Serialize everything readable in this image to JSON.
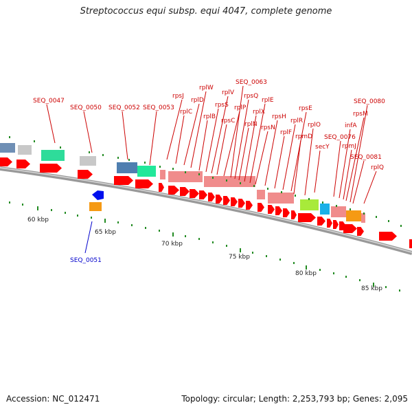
{
  "title": "Streptococcus equi subsp. equi 4047, complete genome",
  "footer": {
    "accession": "Accession: NC_012471",
    "summary": "Topology: circular; Length: 2,253,793 bp; Genes: 2,095"
  },
  "colors": {
    "gene_label": "#cc0000",
    "reverse_label": "#0000cc",
    "cds_arrow": "#ff0000",
    "tick": "#228b22",
    "backbone": "#9a9a9a",
    "ribosomal_block": "#f08c8c"
  },
  "scale_labels": [
    "60 kbp",
    "65 kbp",
    "70 kbp",
    "75 kbp",
    "80 kbp",
    "85 kbp"
  ],
  "gene_labels": [
    "SEQ_0047",
    "SEQ_0050",
    "SEQ_0052",
    "SEQ_0053",
    "rpsJ",
    "rplC",
    "rplD",
    "rplW",
    "rplB",
    "rpsS",
    "rplV",
    "rpsC",
    "rplP",
    "SEQ_0063",
    "rpsQ",
    "rplN",
    "rplX",
    "rplE",
    "rpsN",
    "rpsH",
    "rplF",
    "rplR",
    "rpsE",
    "rpmD",
    "rplO",
    "secY",
    "SEQ_0076",
    "infA",
    "rpmJ",
    "rpsM",
    "SEQ_0080",
    "SEQ_0081",
    "rplQ"
  ],
  "reverse_labels": [
    "SEQ_0051"
  ]
}
